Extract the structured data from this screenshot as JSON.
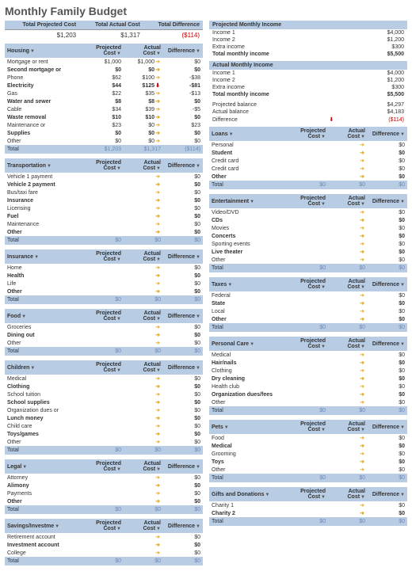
{
  "title": "Monthly Family Budget",
  "colors": {
    "header_bg": "#b8cce4",
    "neg": "#c00",
    "arrow_right": "#e6a817",
    "arrow_down": "#c00",
    "total_text": "#6a8bb8"
  },
  "summary": {
    "headers": [
      "Total Projected Cost",
      "Total Actual Cost",
      "Total Difference"
    ],
    "values": [
      "$1,203",
      "$1,317",
      "($114)"
    ]
  },
  "projected_income": {
    "title": "Projected Monthly Income",
    "rows": [
      {
        "label": "Income 1",
        "val": "$4,000"
      },
      {
        "label": "Income 2",
        "val": "$1,200"
      },
      {
        "label": "Extra income",
        "val": "$300"
      },
      {
        "label": "Total monthly income",
        "val": "$5,500"
      }
    ]
  },
  "actual_income": {
    "title": "Actual Monthly Income",
    "rows": [
      {
        "label": "Income 1",
        "val": "$4,000"
      },
      {
        "label": "Income 2",
        "val": "$1,200"
      },
      {
        "label": "Extra income",
        "val": "$300"
      },
      {
        "label": "Total monthly income",
        "val": "$5,500"
      }
    ]
  },
  "balance": {
    "rows": [
      {
        "label": "Projected balance",
        "val": "$4,297"
      },
      {
        "label": "Actual balance",
        "val": "$4,183"
      },
      {
        "label": "Difference",
        "val": "($114)",
        "neg": true,
        "arrow": "down"
      }
    ]
  },
  "col_headers": [
    "Projected Cost",
    "Actual Cost",
    "Difference"
  ],
  "dropdown": "▼",
  "arrows": {
    "right": "➜",
    "down": "⬇"
  },
  "left_cats": [
    {
      "name": "Housing",
      "rows": [
        {
          "l": "Mortgage or rent",
          "p": "$1,000",
          "a": "$1,000",
          "ar": "right",
          "d": "$0"
        },
        {
          "l": "Second mortgage or",
          "p": "$0",
          "a": "$0",
          "ar": "right",
          "d": "$0",
          "b": true
        },
        {
          "l": "Phone",
          "p": "$62",
          "a": "$100",
          "ar": "right",
          "d": "-$38"
        },
        {
          "l": "Electricity",
          "p": "$44",
          "a": "$125",
          "ar": "down",
          "d": "-$81",
          "b": true
        },
        {
          "l": "Gas",
          "p": "$22",
          "a": "$35",
          "ar": "right",
          "d": "-$13"
        },
        {
          "l": "Water and sewer",
          "p": "$8",
          "a": "$8",
          "ar": "right",
          "d": "$0",
          "b": true
        },
        {
          "l": "Cable",
          "p": "$34",
          "a": "$39",
          "ar": "right",
          "d": "-$5"
        },
        {
          "l": "Waste removal",
          "p": "$10",
          "a": "$10",
          "ar": "right",
          "d": "$0",
          "b": true
        },
        {
          "l": "Maintenance or",
          "p": "$23",
          "a": "$0",
          "ar": "right",
          "d": "$23"
        },
        {
          "l": "Supplies",
          "p": "$0",
          "a": "$0",
          "ar": "right",
          "d": "$0",
          "b": true
        },
        {
          "l": "Other",
          "p": "$0",
          "a": "$0",
          "ar": "right",
          "d": "$0"
        }
      ],
      "tot": {
        "p": "$1,203",
        "a": "$1,317",
        "d": "($114)",
        "neg": true
      }
    },
    {
      "name": "Transportation",
      "rows": [
        {
          "l": "Vehicle 1 payment",
          "p": "",
          "a": "",
          "ar": "right",
          "d": "$0"
        },
        {
          "l": "Vehicle 2 payment",
          "p": "",
          "a": "",
          "ar": "right",
          "d": "$0",
          "b": true
        },
        {
          "l": "Bus/taxi fare",
          "p": "",
          "a": "",
          "ar": "right",
          "d": "$0"
        },
        {
          "l": "Insurance",
          "p": "",
          "a": "",
          "ar": "right",
          "d": "$0",
          "b": true
        },
        {
          "l": "Licensing",
          "p": "",
          "a": "",
          "ar": "right",
          "d": "$0"
        },
        {
          "l": "Fuel",
          "p": "",
          "a": "",
          "ar": "right",
          "d": "$0",
          "b": true
        },
        {
          "l": "Maintenance",
          "p": "",
          "a": "",
          "ar": "right",
          "d": "$0"
        },
        {
          "l": "Other",
          "p": "",
          "a": "",
          "ar": "right",
          "d": "$0",
          "b": true
        }
      ],
      "tot": {
        "p": "$0",
        "a": "$0",
        "d": "$0"
      }
    },
    {
      "name": "Insurance",
      "rows": [
        {
          "l": "Home",
          "p": "",
          "a": "",
          "ar": "right",
          "d": "$0"
        },
        {
          "l": "Health",
          "p": "",
          "a": "",
          "ar": "right",
          "d": "$0",
          "b": true
        },
        {
          "l": "Life",
          "p": "",
          "a": "",
          "ar": "right",
          "d": "$0"
        },
        {
          "l": "Other",
          "p": "",
          "a": "",
          "ar": "right",
          "d": "$0",
          "b": true
        }
      ],
      "tot": {
        "p": "$0",
        "a": "$0",
        "d": "$0"
      }
    },
    {
      "name": "Food",
      "rows": [
        {
          "l": "Groceries",
          "p": "",
          "a": "",
          "ar": "right",
          "d": "$0"
        },
        {
          "l": "Dining out",
          "p": "",
          "a": "",
          "ar": "right",
          "d": "$0",
          "b": true
        },
        {
          "l": "Other",
          "p": "",
          "a": "",
          "ar": "right",
          "d": "$0"
        }
      ],
      "tot": {
        "p": "$0",
        "a": "$0",
        "d": "$0"
      }
    },
    {
      "name": "Children",
      "rows": [
        {
          "l": "Medical",
          "p": "",
          "a": "",
          "ar": "right",
          "d": "$0"
        },
        {
          "l": "Clothing",
          "p": "",
          "a": "",
          "ar": "right",
          "d": "$0",
          "b": true
        },
        {
          "l": "School tuition",
          "p": "",
          "a": "",
          "ar": "right",
          "d": "$0"
        },
        {
          "l": "School supplies",
          "p": "",
          "a": "",
          "ar": "right",
          "d": "$0",
          "b": true
        },
        {
          "l": "Organization dues or",
          "p": "",
          "a": "",
          "ar": "right",
          "d": "$0"
        },
        {
          "l": "Lunch money",
          "p": "",
          "a": "",
          "ar": "right",
          "d": "$0",
          "b": true
        },
        {
          "l": "Child care",
          "p": "",
          "a": "",
          "ar": "right",
          "d": "$0"
        },
        {
          "l": "Toys/games",
          "p": "",
          "a": "",
          "ar": "right",
          "d": "$0",
          "b": true
        },
        {
          "l": "Other",
          "p": "",
          "a": "",
          "ar": "right",
          "d": "$0"
        }
      ],
      "tot": {
        "p": "$0",
        "a": "$0",
        "d": "$0"
      }
    },
    {
      "name": "Legal",
      "rows": [
        {
          "l": "Attorney",
          "p": "",
          "a": "",
          "ar": "right",
          "d": "$0"
        },
        {
          "l": "Alimony",
          "p": "",
          "a": "",
          "ar": "right",
          "d": "$0",
          "b": true
        },
        {
          "l": "Payments",
          "p": "",
          "a": "",
          "ar": "right",
          "d": "$0"
        },
        {
          "l": "Other",
          "p": "",
          "a": "",
          "ar": "right",
          "d": "$0",
          "b": true
        }
      ],
      "tot": {
        "p": "$0",
        "a": "$0",
        "d": "$0"
      }
    },
    {
      "name": "Savings/Investme",
      "rows": [
        {
          "l": "Retirement account",
          "p": "",
          "a": "",
          "ar": "right",
          "d": "$0"
        },
        {
          "l": "Investment account",
          "p": "",
          "a": "",
          "ar": "right",
          "d": "$0",
          "b": true
        },
        {
          "l": "College",
          "p": "",
          "a": "",
          "ar": "right",
          "d": "$0"
        }
      ],
      "tot": {
        "p": "$0",
        "a": "$0",
        "d": "$0"
      }
    }
  ],
  "right_cats": [
    {
      "name": "Loans",
      "rows": [
        {
          "l": "Personal",
          "p": "",
          "a": "",
          "ar": "right",
          "d": "$0"
        },
        {
          "l": "Student",
          "p": "",
          "a": "",
          "ar": "right",
          "d": "$0",
          "b": true
        },
        {
          "l": "Credit card",
          "p": "",
          "a": "",
          "ar": "right",
          "d": "$0"
        },
        {
          "l": "Credit card",
          "p": "",
          "a": "",
          "ar": "right",
          "d": "$0"
        },
        {
          "l": "Other",
          "p": "",
          "a": "",
          "ar": "right",
          "d": "$0",
          "b": true
        }
      ],
      "tot": {
        "p": "$0",
        "a": "$0",
        "d": "$0"
      }
    },
    {
      "name": "Entertainment",
      "rows": [
        {
          "l": "Video/DVD",
          "p": "",
          "a": "",
          "ar": "right",
          "d": "$0"
        },
        {
          "l": "CDs",
          "p": "",
          "a": "",
          "ar": "right",
          "d": "$0",
          "b": true
        },
        {
          "l": "Movies",
          "p": "",
          "a": "",
          "ar": "right",
          "d": "$0"
        },
        {
          "l": "Concerts",
          "p": "",
          "a": "",
          "ar": "right",
          "d": "$0",
          "b": true
        },
        {
          "l": "Sporting events",
          "p": "",
          "a": "",
          "ar": "right",
          "d": "$0"
        },
        {
          "l": "Live theater",
          "p": "",
          "a": "",
          "ar": "right",
          "d": "$0",
          "b": true
        },
        {
          "l": "Other",
          "p": "",
          "a": "",
          "ar": "right",
          "d": "$0"
        }
      ],
      "tot": {
        "p": "$0",
        "a": "$0",
        "d": "$0"
      }
    },
    {
      "name": "Taxes",
      "rows": [
        {
          "l": "Federal",
          "p": "",
          "a": "",
          "ar": "right",
          "d": "$0"
        },
        {
          "l": "State",
          "p": "",
          "a": "",
          "ar": "right",
          "d": "$0",
          "b": true
        },
        {
          "l": "Local",
          "p": "",
          "a": "",
          "ar": "right",
          "d": "$0"
        },
        {
          "l": "Other",
          "p": "",
          "a": "",
          "ar": "right",
          "d": "$0",
          "b": true
        }
      ],
      "tot": {
        "p": "$0",
        "a": "$0",
        "d": "$0"
      }
    },
    {
      "name": "Personal Care",
      "rows": [
        {
          "l": "Medical",
          "p": "",
          "a": "",
          "ar": "right",
          "d": "$0"
        },
        {
          "l": "Hair/nails",
          "p": "",
          "a": "",
          "ar": "right",
          "d": "$0",
          "b": true
        },
        {
          "l": "Clothing",
          "p": "",
          "a": "",
          "ar": "right",
          "d": "$0"
        },
        {
          "l": "Dry cleaning",
          "p": "",
          "a": "",
          "ar": "right",
          "d": "$0",
          "b": true
        },
        {
          "l": "Health club",
          "p": "",
          "a": "",
          "ar": "right",
          "d": "$0"
        },
        {
          "l": "Organization dues/fees",
          "p": "",
          "a": "",
          "ar": "right",
          "d": "$0",
          "b": true
        },
        {
          "l": "Other",
          "p": "",
          "a": "",
          "ar": "right",
          "d": "$0"
        }
      ],
      "tot": {
        "p": "$0",
        "a": "$0",
        "d": "$0"
      }
    },
    {
      "name": "Pets",
      "rows": [
        {
          "l": "Food",
          "p": "",
          "a": "",
          "ar": "right",
          "d": "$0"
        },
        {
          "l": "Medical",
          "p": "",
          "a": "",
          "ar": "right",
          "d": "$0",
          "b": true
        },
        {
          "l": "Grooming",
          "p": "",
          "a": "",
          "ar": "right",
          "d": "$0"
        },
        {
          "l": "Toys",
          "p": "",
          "a": "",
          "ar": "right",
          "d": "$0",
          "b": true
        },
        {
          "l": "Other",
          "p": "",
          "a": "",
          "ar": "right",
          "d": "$0"
        }
      ],
      "tot": {
        "p": "$0",
        "a": "$0",
        "d": "$0"
      }
    },
    {
      "name": "Gifts and Donations",
      "rows": [
        {
          "l": "Charity 1",
          "p": "",
          "a": "",
          "ar": "right",
          "d": "$0"
        },
        {
          "l": "Charity 2",
          "p": "",
          "a": "",
          "ar": "right",
          "d": "$0",
          "b": true
        }
      ],
      "tot": {
        "p": "$0",
        "a": "$0",
        "d": "$0"
      }
    }
  ]
}
